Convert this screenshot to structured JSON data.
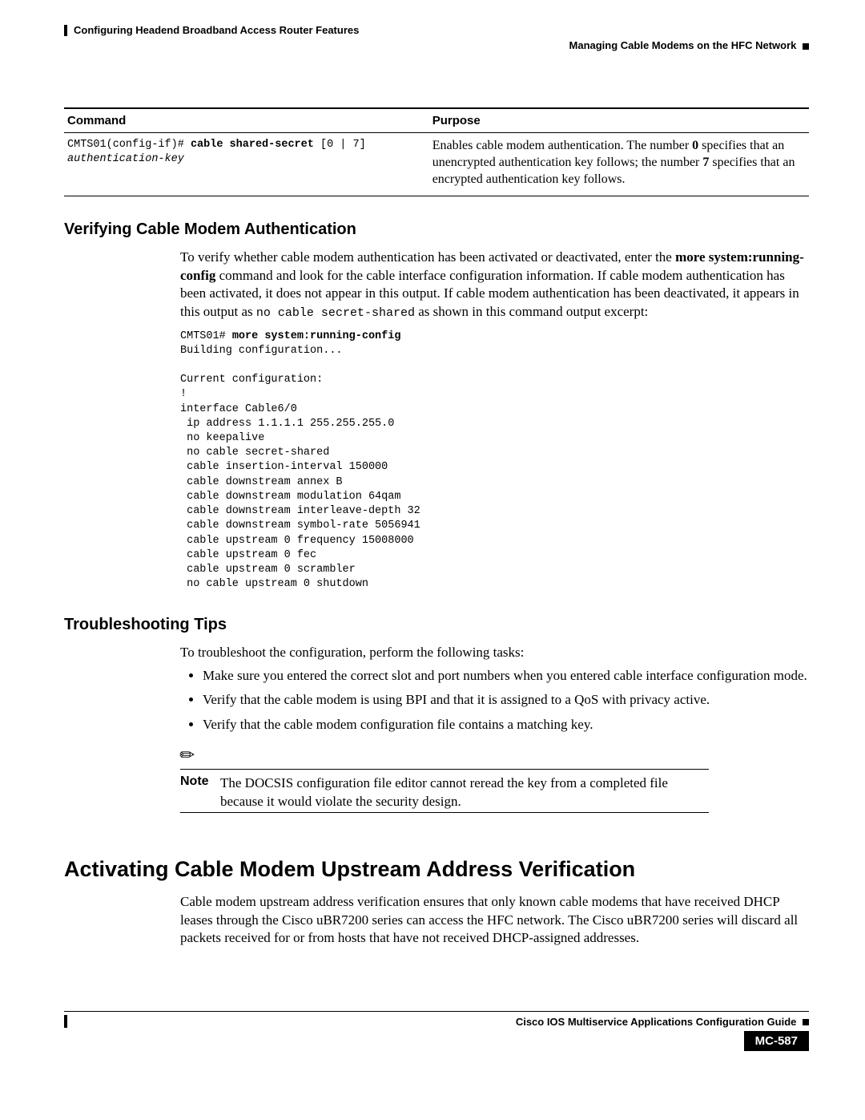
{
  "header": {
    "chapter": "Configuring Headend Broadband Access Router Features",
    "section": "Managing Cable Modems on the HFC Network"
  },
  "table": {
    "col1_header": "Command",
    "col2_header": "Purpose",
    "cmd_prefix": "CMTS01(config-if)# ",
    "cmd_bold": "cable shared-secret",
    "cmd_args": " [0 | 7] ",
    "cmd_ital": "authentication-key",
    "purpose_1": "Enables cable modem authentication. The number ",
    "purpose_bold0": "0",
    "purpose_2": " specifies that an unencrypted authentication key follows; the number ",
    "purpose_bold7": "7",
    "purpose_3": " specifies that an encrypted authentication key follows."
  },
  "verify": {
    "heading": "Verifying Cable Modem Authentication",
    "p1a": "To verify whether cable modem authentication has been activated or deactivated, enter the ",
    "p1b_bold": "more system:running-config",
    "p1c": " command and look for the cable interface configuration information. If cable modem authentication has been activated, it does not appear in this output. If cable modem authentication has been deactivated, it appears in this output as ",
    "p1d_mono": "no cable secret-shared",
    "p1e": " as shown in this command output excerpt:",
    "pre_prefix": "CMTS01# ",
    "pre_bold": "more system:running-config",
    "pre_body": "Building configuration...\n\nCurrent configuration:\n!\ninterface Cable6/0\n ip address 1.1.1.1 255.255.255.0\n no keepalive\n no cable secret-shared\n cable insertion-interval 150000\n cable downstream annex B\n cable downstream modulation 64qam\n cable downstream interleave-depth 32\n cable downstream symbol-rate 5056941\n cable upstream 0 frequency 15008000\n cable upstream 0 fec\n cable upstream 0 scrambler\n no cable upstream 0 shutdown"
  },
  "trouble": {
    "heading": "Troubleshooting Tips",
    "intro": "To troubleshoot the configuration, perform the following tasks:",
    "b1": "Make sure you entered the correct slot and port numbers when you entered cable interface configuration mode.",
    "b2": "Verify that the cable modem is using BPI and that it is assigned to a QoS with privacy active.",
    "b3": "Verify that the cable modem configuration file contains a matching key."
  },
  "note": {
    "label": "Note",
    "text": "The DOCSIS configuration file editor cannot reread the key from a completed file because it would violate the security design."
  },
  "activate": {
    "heading": "Activating Cable Modem Upstream Address Verification",
    "p": "Cable modem upstream address verification ensures that only known cable modems that have received DHCP leases through the Cisco uBR7200 series can access the HFC network. The Cisco uBR7200 series will discard all packets received for or from hosts that have not received DHCP-assigned addresses."
  },
  "footer": {
    "title": "Cisco IOS Multiservice Applications Configuration Guide",
    "page": "MC-587"
  }
}
